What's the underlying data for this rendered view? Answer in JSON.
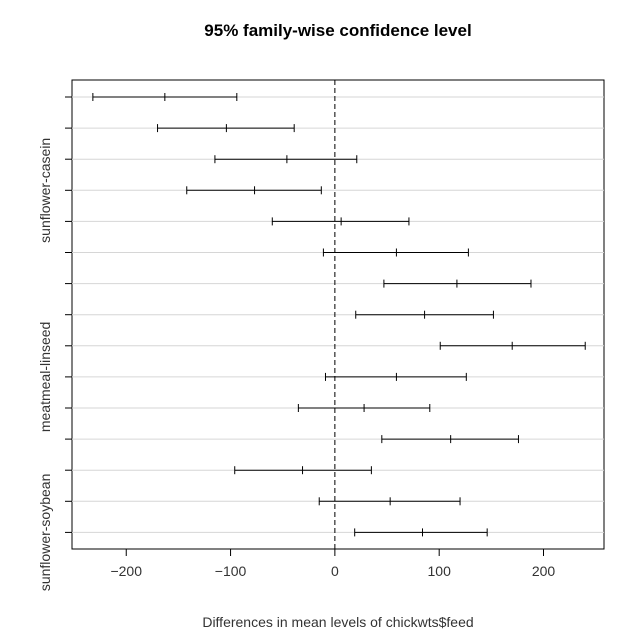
{
  "chart_data": {
    "type": "interval",
    "title": "95% family-wise confidence level",
    "xlabel": "Differences in mean levels of chickwts$feed",
    "xlim": [
      -252,
      258
    ],
    "xticks": [
      -200,
      -100,
      0,
      100,
      200
    ],
    "reference_line": 0,
    "y_tick_labels": [
      "",
      "",
      "",
      "",
      "",
      "",
      "",
      "",
      "",
      "",
      "",
      "",
      "",
      "",
      ""
    ],
    "y_labels_shown": [
      {
        "label": "sunflower-casein",
        "row": 3
      },
      {
        "label": "meatmeal-linseed",
        "row": 9
      },
      {
        "label": "sunflower-soybean",
        "row": 14
      }
    ],
    "intervals": [
      {
        "lwr": -232,
        "diff": -163,
        "upr": -94
      },
      {
        "lwr": -170,
        "diff": -104,
        "upr": -39
      },
      {
        "lwr": -115,
        "diff": -46,
        "upr": 21
      },
      {
        "lwr": -142,
        "diff": -77,
        "upr": -13
      },
      {
        "lwr": -60,
        "diff": 6,
        "upr": 71
      },
      {
        "lwr": -11,
        "diff": 59,
        "upr": 128
      },
      {
        "lwr": 47,
        "diff": 117,
        "upr": 188
      },
      {
        "lwr": 20,
        "diff": 86,
        "upr": 152
      },
      {
        "lwr": 101,
        "diff": 170,
        "upr": 240
      },
      {
        "lwr": -9,
        "diff": 59,
        "upr": 126
      },
      {
        "lwr": -35,
        "diff": 28,
        "upr": 91
      },
      {
        "lwr": 45,
        "diff": 111,
        "upr": 176
      },
      {
        "lwr": -96,
        "diff": -31,
        "upr": 35
      },
      {
        "lwr": -15,
        "diff": 53,
        "upr": 120
      },
      {
        "lwr": 19,
        "diff": 84,
        "upr": 146
      }
    ]
  }
}
